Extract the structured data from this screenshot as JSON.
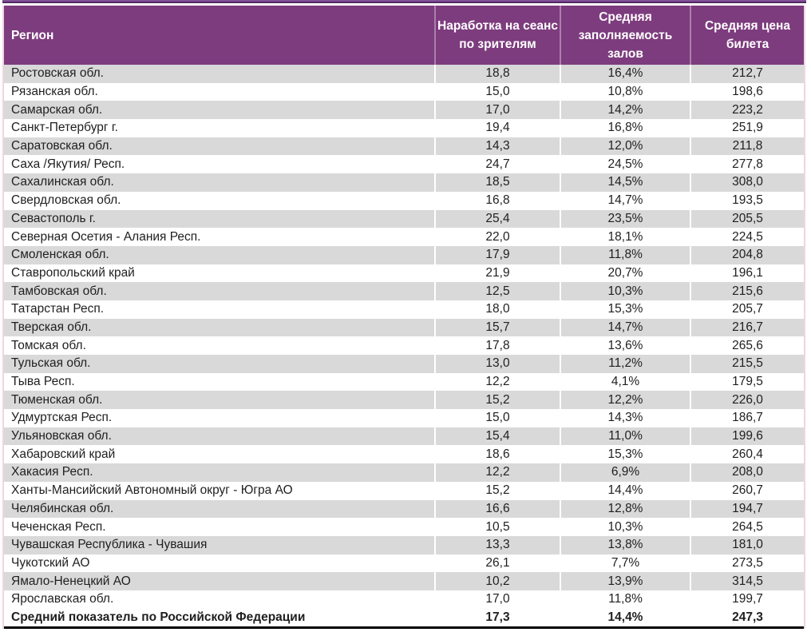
{
  "table": {
    "columns": [
      {
        "key": "region",
        "label": "Регион"
      },
      {
        "key": "per_session",
        "label": "Наработка на сеанс по зрителям"
      },
      {
        "key": "occupancy",
        "label": "Средняя заполняемость залов"
      },
      {
        "key": "avg_price",
        "label": "Средняя цена билета"
      }
    ]
  },
  "chart_data": {
    "type": "table",
    "columns": [
      "Регион",
      "Наработка на сеанс по зрителям",
      "Средняя заполняемость залов",
      "Средняя цена билета"
    ],
    "rows": [
      [
        "Ростовская обл.",
        "18,8",
        "16,4%",
        "212,7"
      ],
      [
        "Рязанская обл.",
        "15,0",
        "10,8%",
        "198,6"
      ],
      [
        "Самарская обл.",
        "17,0",
        "14,2%",
        "223,2"
      ],
      [
        "Санкт-Петербург г.",
        "19,4",
        "16,8%",
        "251,9"
      ],
      [
        "Саратовская обл.",
        "14,3",
        "12,0%",
        "211,8"
      ],
      [
        "Саха /Якутия/ Респ.",
        "24,7",
        "24,5%",
        "277,8"
      ],
      [
        "Сахалинская обл.",
        "18,5",
        "14,5%",
        "308,0"
      ],
      [
        "Свердловская обл.",
        "16,8",
        "14,7%",
        "193,5"
      ],
      [
        "Севастополь г.",
        "25,4",
        "23,5%",
        "205,5"
      ],
      [
        "Северная Осетия - Алания Респ.",
        "22,0",
        "18,1%",
        "224,5"
      ],
      [
        "Смоленская обл.",
        "17,9",
        "11,8%",
        "204,8"
      ],
      [
        "Ставропольский край",
        "21,9",
        "20,7%",
        "196,1"
      ],
      [
        "Тамбовская обл.",
        "12,5",
        "10,3%",
        "215,6"
      ],
      [
        "Татарстан Респ.",
        "18,0",
        "15,3%",
        "205,7"
      ],
      [
        "Тверская обл.",
        "15,7",
        "14,7%",
        "216,7"
      ],
      [
        "Томская обл.",
        "17,8",
        "13,6%",
        "265,6"
      ],
      [
        "Тульская обл.",
        "13,0",
        "11,2%",
        "215,5"
      ],
      [
        "Тыва Респ.",
        "12,2",
        "4,1%",
        "179,5"
      ],
      [
        "Тюменская обл.",
        "15,2",
        "12,2%",
        "226,0"
      ],
      [
        "Удмуртская Респ.",
        "15,0",
        "14,3%",
        "186,7"
      ],
      [
        "Ульяновская обл.",
        "15,4",
        "11,0%",
        "199,6"
      ],
      [
        "Хабаровский край",
        "18,6",
        "15,3%",
        "260,4"
      ],
      [
        "Хакасия Респ.",
        "12,2",
        "6,9%",
        "208,0"
      ],
      [
        "Ханты-Мансийский Автономный округ - Югра АО",
        "15,2",
        "14,4%",
        "260,7"
      ],
      [
        "Челябинская обл.",
        "16,6",
        "12,8%",
        "194,7"
      ],
      [
        "Чеченская Респ.",
        "10,5",
        "10,3%",
        "264,5"
      ],
      [
        "Чувашская Республика - Чувашия",
        "13,3",
        "13,8%",
        "181,0"
      ],
      [
        "Чукотский АО",
        "26,1",
        "7,7%",
        "273,5"
      ],
      [
        "Ямало-Ненецкий АО",
        "10,2",
        "13,9%",
        "314,5"
      ],
      [
        "Ярославская обл.",
        "17,0",
        "11,8%",
        "199,7"
      ]
    ],
    "summary_row": [
      "Средний показатель по Российской Федерации",
      "17,3",
      "14,4%",
      "247,3"
    ]
  },
  "colors": {
    "header_bg": "#7d3c7e",
    "header_text": "#ffffff",
    "stripe_row_bg": "#d9d9d9",
    "plain_row_bg": "#ffffff",
    "body_text": "#1f1f1f",
    "top_strip": "#82519a",
    "top_strip_line": "#502a62",
    "edge_border": "#eed6e1",
    "summary_border": "#000000"
  }
}
